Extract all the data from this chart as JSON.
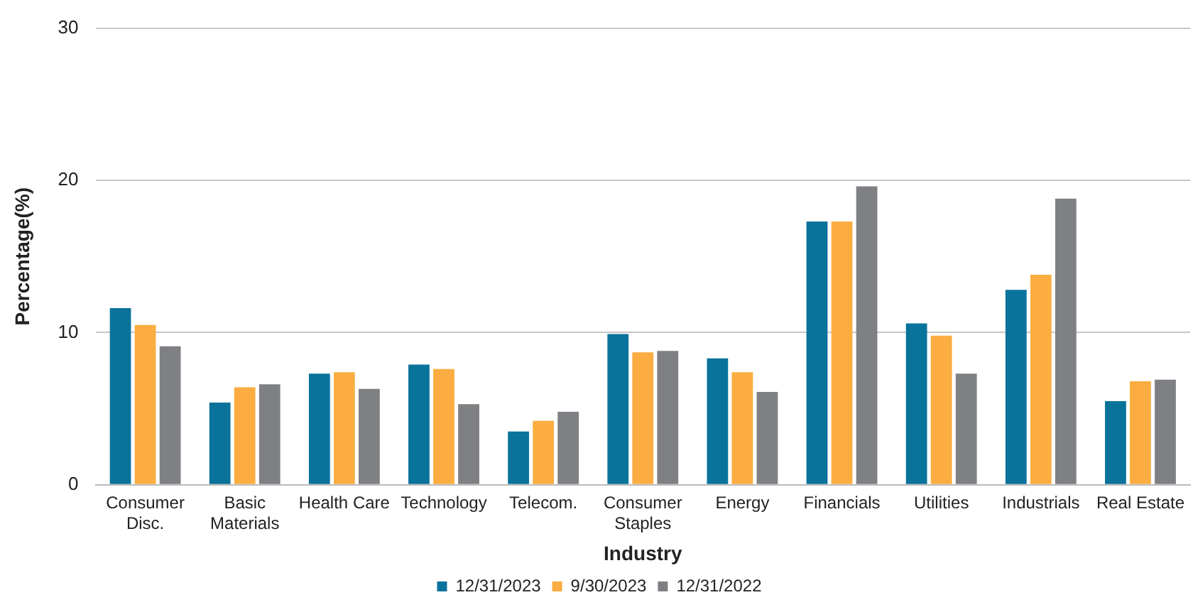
{
  "chart_data": {
    "type": "bar",
    "xlabel": "Industry",
    "ylabel": "Percentage(%)",
    "categories": [
      "Consumer Disc.",
      "Basic Materials",
      "Health Care",
      "Technology",
      "Telecom.",
      "Consumer Staples",
      "Energy",
      "Financials",
      "Utilities",
      "Industrials",
      "Real Estate"
    ],
    "series": [
      {
        "name": "12/31/2023",
        "color": "#0a739b",
        "values": [
          11.6,
          5.4,
          7.3,
          7.9,
          3.5,
          9.9,
          8.3,
          17.3,
          10.6,
          12.8,
          5.5
        ]
      },
      {
        "name": "9/30/2023",
        "color": "#fbad41",
        "values": [
          10.5,
          6.4,
          7.4,
          7.6,
          4.2,
          8.7,
          7.4,
          17.3,
          9.8,
          13.8,
          6.8
        ]
      },
      {
        "name": "12/31/2022",
        "color": "#7f8083",
        "values": [
          9.1,
          6.6,
          6.3,
          5.3,
          4.8,
          8.8,
          6.1,
          19.6,
          7.3,
          18.8,
          6.9
        ]
      }
    ],
    "ylim": [
      0,
      30
    ],
    "yticks": [
      0,
      10,
      20,
      30
    ],
    "grid": "y",
    "legend": "bottom"
  }
}
